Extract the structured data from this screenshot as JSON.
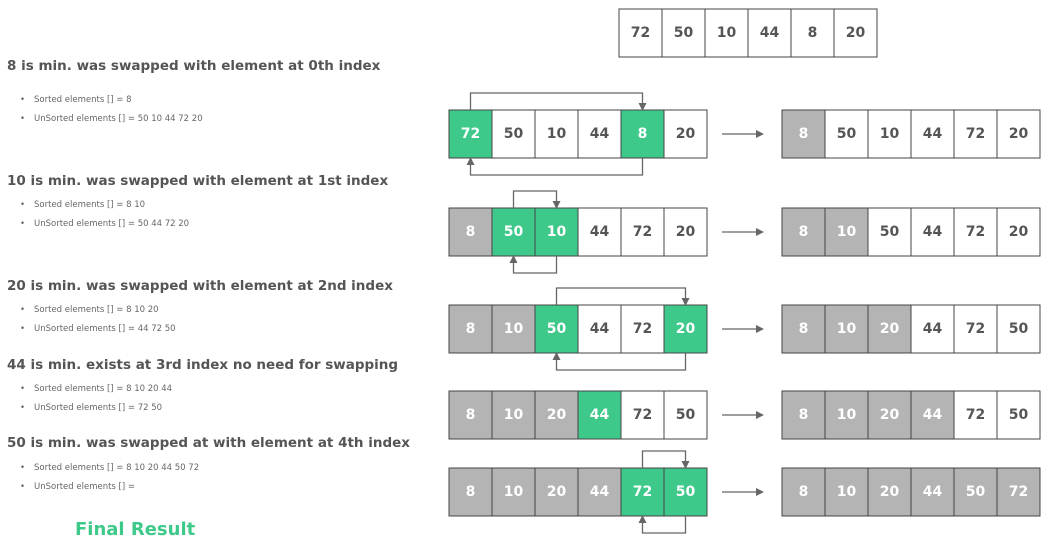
{
  "colors": {
    "sorted": "#b4b4b4",
    "swap": "#3ec98b",
    "plain": "#ffffff",
    "border": "#444444",
    "final_text": "#3ec98b"
  },
  "initial_array": [
    "72",
    "50",
    "10",
    "44",
    "8",
    "20"
  ],
  "steps": [
    {
      "title": "8 is min. was swapped with element at 0th index",
      "sorted_label": "Sorted elements []  = 8",
      "unsorted_label": "UnSorted elements []  = 50 10 44 72 20",
      "before": [
        "72",
        "50",
        "10",
        "44",
        "8",
        "20"
      ],
      "before_states": [
        "swap",
        "plain",
        "plain",
        "plain",
        "swap",
        "plain"
      ],
      "after": [
        "8",
        "50",
        "10",
        "44",
        "72",
        "20"
      ],
      "after_states": [
        "sorted",
        "plain",
        "plain",
        "plain",
        "plain",
        "plain"
      ],
      "swap": [
        0,
        4
      ]
    },
    {
      "title": "10 is min. was swapped with element at 1st index",
      "sorted_label": "Sorted elements []  = 8 10",
      "unsorted_label": "UnSorted elements []  = 50 44 72 20",
      "before": [
        "8",
        "50",
        "10",
        "44",
        "72",
        "20"
      ],
      "before_states": [
        "sorted",
        "swap",
        "swap",
        "plain",
        "plain",
        "plain"
      ],
      "after": [
        "8",
        "10",
        "50",
        "44",
        "72",
        "20"
      ],
      "after_states": [
        "sorted",
        "sorted",
        "plain",
        "plain",
        "plain",
        "plain"
      ],
      "swap": [
        1,
        2
      ]
    },
    {
      "title": "20 is min. was swapped with element at 2nd index",
      "sorted_label": "Sorted elements []  = 8 10 20",
      "unsorted_label": "UnSorted elements []  = 44 72 50",
      "before": [
        "8",
        "10",
        "50",
        "44",
        "72",
        "20"
      ],
      "before_states": [
        "sorted",
        "sorted",
        "swap",
        "plain",
        "plain",
        "swap"
      ],
      "after": [
        "8",
        "10",
        "20",
        "44",
        "72",
        "50"
      ],
      "after_states": [
        "sorted",
        "sorted",
        "sorted",
        "plain",
        "plain",
        "plain"
      ],
      "swap": [
        2,
        5
      ]
    },
    {
      "title": "44 is min. exists at 3rd index no need for swapping",
      "sorted_label": "Sorted elements []  = 8 10 20 44",
      "unsorted_label": "UnSorted elements []  = 72 50",
      "before": [
        "8",
        "10",
        "20",
        "44",
        "72",
        "50"
      ],
      "before_states": [
        "sorted",
        "sorted",
        "sorted",
        "swap",
        "plain",
        "plain"
      ],
      "after": [
        "8",
        "10",
        "20",
        "44",
        "72",
        "50"
      ],
      "after_states": [
        "sorted",
        "sorted",
        "sorted",
        "sorted",
        "plain",
        "plain"
      ],
      "swap": null
    },
    {
      "title": "50 is min. was swapped at with element at 4th index",
      "sorted_label": "Sorted elements []  = 8 10 20 44 50 72",
      "unsorted_label": "UnSorted elements []  =",
      "before": [
        "8",
        "10",
        "20",
        "44",
        "72",
        "50"
      ],
      "before_states": [
        "sorted",
        "sorted",
        "sorted",
        "sorted",
        "swap",
        "swap"
      ],
      "after": [
        "8",
        "10",
        "20",
        "44",
        "50",
        "72"
      ],
      "after_states": [
        "sorted",
        "sorted",
        "sorted",
        "sorted",
        "sorted",
        "sorted"
      ],
      "swap": [
        4,
        5
      ]
    }
  ],
  "final_label": "Final Result"
}
